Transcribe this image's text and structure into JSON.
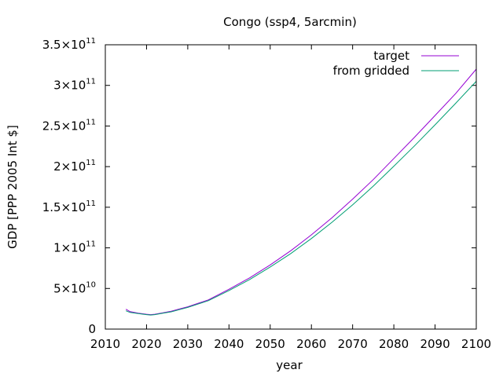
{
  "chart_data": {
    "type": "line",
    "title": "Congo (ssp4, 5arcmin)",
    "xlabel": "year",
    "ylabel": "GDP [PPP 2005 Int $]",
    "xlim": [
      2010,
      2100
    ],
    "ylim": [
      0,
      350000000000
    ],
    "x_ticks": [
      {
        "value": 2010,
        "label": "2010"
      },
      {
        "value": 2020,
        "label": "2020"
      },
      {
        "value": 2030,
        "label": "2030"
      },
      {
        "value": 2040,
        "label": "2040"
      },
      {
        "value": 2050,
        "label": "2050"
      },
      {
        "value": 2060,
        "label": "2060"
      },
      {
        "value": 2070,
        "label": "2070"
      },
      {
        "value": 2080,
        "label": "2080"
      },
      {
        "value": 2090,
        "label": "2090"
      },
      {
        "value": 2100,
        "label": "2100"
      }
    ],
    "y_ticks": [
      {
        "value": 0,
        "mantissa": "0",
        "exponent": ""
      },
      {
        "value": 50000000000,
        "mantissa": "5×10",
        "exponent": "10"
      },
      {
        "value": 100000000000,
        "mantissa": "1×10",
        "exponent": "11"
      },
      {
        "value": 150000000000,
        "mantissa": "1.5×10",
        "exponent": "11"
      },
      {
        "value": 200000000000,
        "mantissa": "2×10",
        "exponent": "11"
      },
      {
        "value": 250000000000,
        "mantissa": "2.5×10",
        "exponent": "11"
      },
      {
        "value": 300000000000,
        "mantissa": "3×10",
        "exponent": "11"
      },
      {
        "value": 350000000000,
        "mantissa": "3.5×10",
        "exponent": "11"
      }
    ],
    "grid": false,
    "legend_position": "top-right",
    "series": [
      {
        "name": "target",
        "color": "#9400d3",
        "x": [
          2015,
          2016,
          2018,
          2020,
          2021,
          2022,
          2024,
          2026,
          2028,
          2030,
          2035,
          2040,
          2045,
          2050,
          2055,
          2060,
          2065,
          2070,
          2075,
          2080,
          2085,
          2090,
          2095,
          2100
        ],
        "y": [
          24500000000,
          21500000000,
          19500000000,
          18300000000,
          17800000000,
          18300000000,
          20000000000,
          22000000000,
          24800000000,
          27500000000,
          36000000000,
          49000000000,
          63000000000,
          79000000000,
          96500000000,
          116000000000,
          137000000000,
          160000000000,
          184000000000,
          210000000000,
          236000000000,
          263000000000,
          290000000000,
          320000000000
        ]
      },
      {
        "name": "from gridded",
        "color": "#009e73",
        "x": [
          2015,
          2016,
          2018,
          2020,
          2021,
          2022,
          2024,
          2026,
          2028,
          2030,
          2035,
          2040,
          2045,
          2050,
          2055,
          2060,
          2065,
          2070,
          2075,
          2080,
          2085,
          2090,
          2095,
          2100
        ],
        "y": [
          22500000000,
          20500000000,
          19000000000,
          17800000000,
          17300000000,
          17800000000,
          19500000000,
          21300000000,
          24000000000,
          26700000000,
          35000000000,
          47500000000,
          61000000000,
          76500000000,
          93000000000,
          111500000000,
          131500000000,
          153000000000,
          176000000000,
          200500000000,
          225500000000,
          251500000000,
          278000000000,
          305000000000
        ]
      }
    ]
  }
}
